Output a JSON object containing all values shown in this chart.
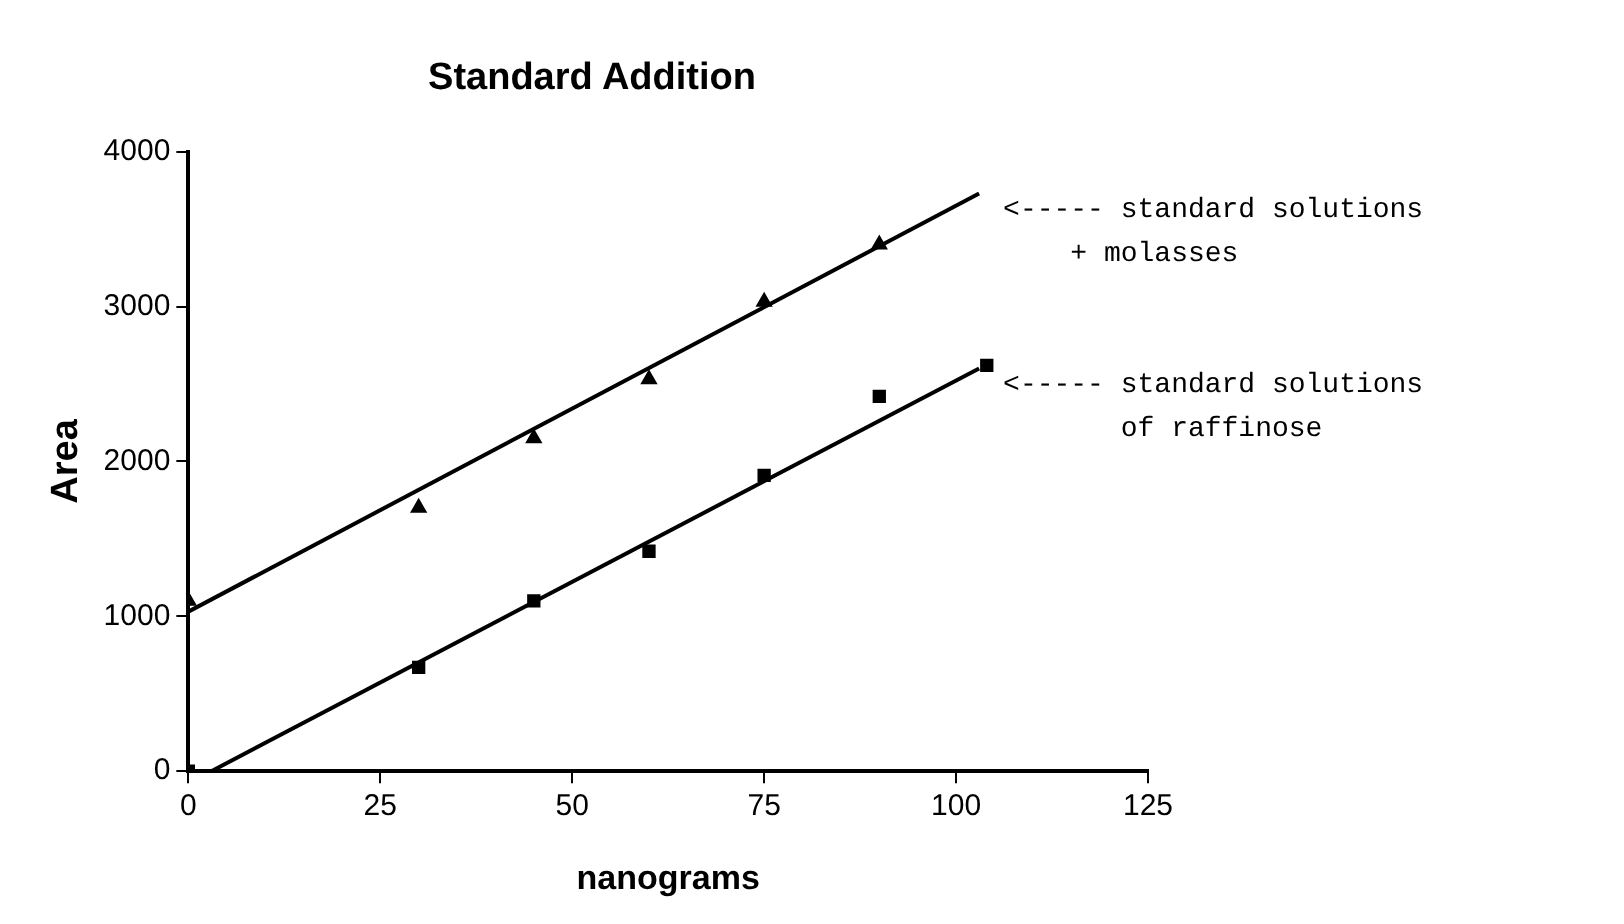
{
  "chart_data": {
    "type": "scatter",
    "title": "Standard Addition",
    "xlabel": "nanograms",
    "ylabel": "Area",
    "xlim": [
      0,
      125
    ],
    "xticks": [
      0,
      25,
      50,
      75,
      100,
      125
    ],
    "ylim": [
      0,
      4000
    ],
    "yticks": [
      0,
      1000,
      2000,
      3000,
      4000
    ],
    "grid": false,
    "legend": false,
    "series": [
      {
        "color": "#000000",
        "marker": "triangle",
        "x": [
          0,
          30,
          45,
          60,
          75,
          90
        ],
        "values": [
          1100,
          1700,
          2150,
          2530,
          3030,
          3400
        ]
      },
      {
        "color": "#000000",
        "marker": "square",
        "x": [
          0,
          30,
          45,
          60,
          75,
          90,
          104
        ],
        "values": [
          0,
          670,
          1100,
          1420,
          1910,
          2420,
          2620
        ]
      },
      {
        "type": "line",
        "color": "#000000",
        "marker": "none",
        "x": [
          0,
          103
        ],
        "values": [
          1030,
          3730
        ]
      },
      {
        "type": "line",
        "color": "#000000",
        "marker": "none",
        "x": [
          3,
          103
        ],
        "values": [
          0,
          2600
        ]
      }
    ],
    "annotations": [
      {
        "text": "<----- standard solutions\n    + molasses",
        "x": 103,
        "y": 3730
      },
      {
        "text": "<----- standard solutions\n       of raffinose",
        "x": 103,
        "y": 2600
      }
    ]
  }
}
